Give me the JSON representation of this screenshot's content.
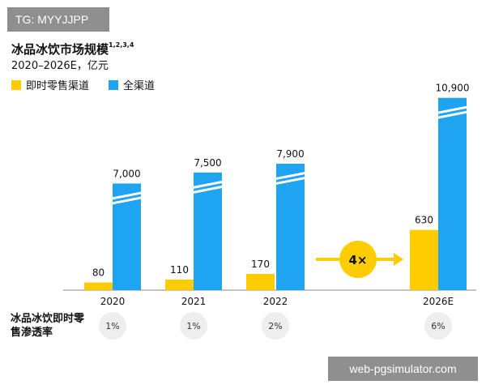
{
  "watermark_top": "TG: MYYJJPP",
  "watermark_bottom": "web-pgsimulator.com",
  "colors": {
    "yellow": "#ffcc00",
    "blue": "#1ea4f0",
    "axis": "#888888",
    "circle": "#eeeeee"
  },
  "chart_data": {
    "type": "bar",
    "title": "冰品冰饮市场规模",
    "title_superscript": "1,2,3,4",
    "subtitle": "2020–2026E，亿元",
    "categories": [
      "2020",
      "2021",
      "2022",
      "2026E"
    ],
    "series": [
      {
        "name": "即时零售渠道",
        "values": [
          80,
          110,
          170,
          630
        ],
        "labels": [
          "80",
          "110",
          "170",
          "630"
        ]
      },
      {
        "name": "全渠道",
        "values": [
          7000,
          7500,
          7900,
          10900
        ],
        "labels": [
          "7,000",
          "7,500",
          "7,900",
          "10,900"
        ]
      }
    ],
    "axis_break": true,
    "growth_annotation": "4×",
    "penetration_row_label": "冰品冰饮即时零售渗透率",
    "penetration": [
      "1%",
      "1%",
      "2%",
      "6%"
    ],
    "legend_position": "top-left"
  }
}
